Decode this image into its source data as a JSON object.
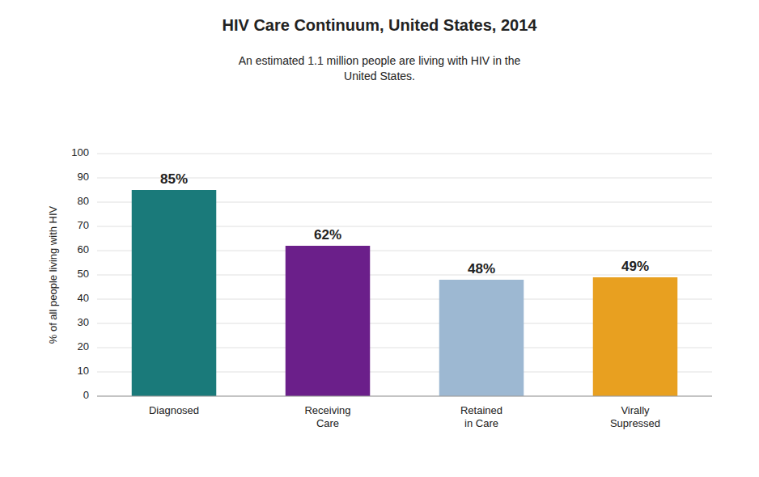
{
  "chart_data": {
    "type": "bar",
    "title": "HIV Care Continuum, United States, 2014",
    "subtitle": "An estimated 1.1 million people are living with HIV in the\nUnited States.",
    "categories": [
      "Diagnosed",
      "Receiving\nCare",
      "Retained\nin Care",
      "Virally\nSupressed"
    ],
    "values": [
      85,
      62,
      48,
      49
    ],
    "value_labels": [
      "85%",
      "62%",
      "48%",
      "49%"
    ],
    "data_labels": true,
    "colors": [
      "#1a7a7a",
      "#6b1f8a",
      "#9db8d2",
      "#e8a020"
    ],
    "ylabel": "% of all people living with HIV",
    "ylim": [
      0,
      100
    ],
    "yticks": [
      0,
      10,
      20,
      30,
      40,
      50,
      60,
      70,
      80,
      90,
      100
    ],
    "grid": true
  }
}
